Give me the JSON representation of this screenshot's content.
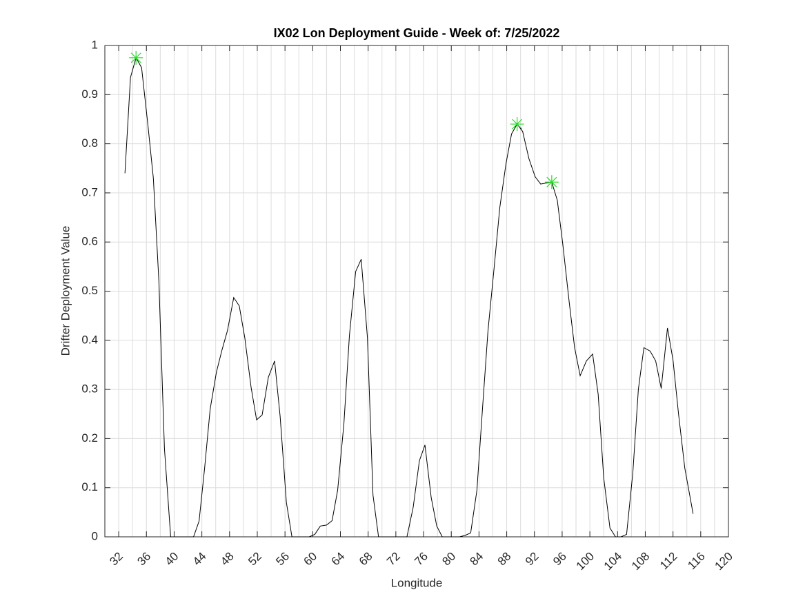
{
  "chart_data": {
    "type": "line",
    "title": "IX02 Lon Deployment Guide - Week of: 7/25/2022",
    "x_label": "Longitude",
    "y_label": "Drifter Deployment Value",
    "xlim": [
      30,
      120
    ],
    "xticks": [
      32,
      36,
      40,
      44,
      48,
      52,
      56,
      60,
      64,
      68,
      72,
      76,
      80,
      84,
      88,
      92,
      96,
      100,
      104,
      108,
      112,
      116,
      120
    ],
    "x_minor_grid": [
      34,
      38,
      42,
      46,
      50,
      54,
      58,
      62,
      66,
      70,
      74,
      78,
      82,
      86,
      90,
      94,
      98,
      102,
      106,
      110,
      114,
      118
    ],
    "ylim": [
      0,
      1
    ],
    "yticks": [
      0,
      0.1,
      0.2,
      0.3,
      0.4,
      0.5,
      0.6,
      0.7,
      0.8,
      0.9,
      1
    ],
    "grid": true,
    "line": {
      "color": "#000000",
      "x": [
        32.9,
        33.7,
        34.5,
        35.3,
        36.2,
        37.0,
        37.8,
        38.6,
        39.5,
        40.3,
        41.1,
        41.9,
        42.8,
        43.6,
        44.4,
        45.2,
        46.1,
        46.9,
        47.7,
        48.6,
        49.4,
        50.2,
        51.1,
        51.9,
        52.7,
        53.6,
        54.5,
        55.3,
        56.2,
        57.0,
        57.8,
        58.6,
        59.5,
        60.3,
        61.1,
        62.0,
        62.8,
        63.6,
        64.5,
        65.3,
        66.2,
        67.0,
        67.9,
        68.7,
        69.5,
        70.4,
        71.2,
        72.0,
        72.8,
        73.6,
        74.5,
        75.4,
        76.2,
        77.1,
        77.9,
        78.7,
        79.6,
        80.4,
        81.2,
        82.0,
        82.8,
        83.7,
        84.5,
        85.3,
        86.2,
        87.0,
        87.9,
        88.7,
        89.5,
        90.3,
        91.2,
        92.1,
        92.9,
        93.7,
        94.5,
        95.3,
        96.1,
        97.0,
        97.8,
        98.6,
        99.5,
        100.4,
        101.2,
        102.0,
        102.9,
        103.7,
        104.5,
        105.3,
        106.2,
        107.0,
        107.8,
        108.7,
        109.5,
        110.3,
        111.2,
        112.0,
        112.8,
        113.7,
        114.9
      ],
      "values": [
        0.74,
        0.935,
        0.975,
        0.955,
        0.84,
        0.73,
        0.52,
        0.18,
        0,
        0,
        0,
        0,
        0,
        0.032,
        0.14,
        0.26,
        0.335,
        0.38,
        0.42,
        0.487,
        0.47,
        0.405,
        0.305,
        0.238,
        0.248,
        0.325,
        0.358,
        0.245,
        0.07,
        0,
        0,
        0,
        0,
        0.005,
        0.022,
        0.024,
        0.033,
        0.095,
        0.23,
        0.41,
        0.54,
        0.565,
        0.405,
        0.085,
        0,
        0,
        0,
        0,
        0,
        0,
        0.06,
        0.155,
        0.187,
        0.08,
        0.022,
        0,
        0,
        0,
        0,
        0.003,
        0.008,
        0.095,
        0.26,
        0.42,
        0.55,
        0.67,
        0.76,
        0.82,
        0.84,
        0.825,
        0.77,
        0.733,
        0.718,
        0.72,
        0.722,
        0.685,
        0.595,
        0.48,
        0.385,
        0.328,
        0.358,
        0.372,
        0.29,
        0.12,
        0.018,
        0,
        0,
        0.005,
        0.13,
        0.3,
        0.385,
        0.378,
        0.358,
        0.302,
        0.425,
        0.36,
        0.25,
        0.14,
        0.047
      ]
    },
    "markers": {
      "color": "#22dd22",
      "x": [
        34.5,
        89.5,
        94.5
      ],
      "values": [
        0.975,
        0.84,
        0.722
      ]
    }
  }
}
